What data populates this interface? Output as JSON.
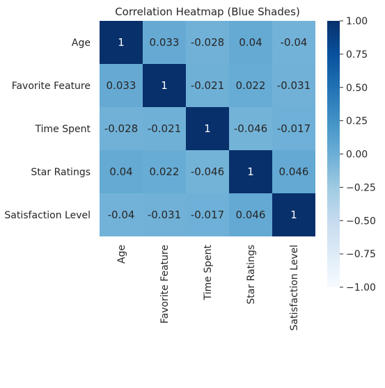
{
  "chart_data": {
    "type": "heatmap",
    "title": "Correlation Heatmap (Blue Shades)",
    "rows": [
      "Age",
      "Favorite Feature",
      "Time Spent",
      "Star Ratings",
      "Satisfaction Level"
    ],
    "columns": [
      "Age",
      "Favorite Feature",
      "Time Spent",
      "Star Ratings",
      "Satisfaction Level"
    ],
    "values": [
      [
        1,
        0.033,
        -0.028,
        0.04,
        -0.04
      ],
      [
        0.033,
        1,
        -0.021,
        0.022,
        -0.031
      ],
      [
        -0.028,
        -0.021,
        1,
        -0.046,
        -0.017
      ],
      [
        0.04,
        0.022,
        -0.046,
        1,
        0.046
      ],
      [
        -0.04,
        -0.031,
        -0.017,
        0.046,
        1
      ]
    ],
    "cell_labels": [
      [
        "1",
        "0.033",
        "-0.028",
        "0.04",
        "-0.04"
      ],
      [
        "0.033",
        "1",
        "-0.021",
        "0.022",
        "-0.031"
      ],
      [
        "-0.028",
        "-0.021",
        "1",
        "-0.046",
        "-0.017"
      ],
      [
        "0.04",
        "0.022",
        "-0.046",
        "1",
        "0.046"
      ],
      [
        "-0.04",
        "-0.031",
        "-0.017",
        "0.046",
        "1"
      ]
    ],
    "colorbar": {
      "range": [
        -1,
        1
      ],
      "ticks": [
        1.0,
        0.75,
        0.5,
        0.25,
        0.0,
        -0.25,
        -0.5,
        -0.75,
        -1.0
      ],
      "tick_labels": [
        "1.00",
        "0.75",
        "0.50",
        "0.25",
        "0.00",
        "−0.25",
        "−0.50",
        "−0.75",
        "−1.00"
      ],
      "colormap": "Blues"
    },
    "colors": {
      "low": "#f7fbff",
      "high": "#08306b",
      "cell_mid": "#6aaed6"
    },
    "grid": false,
    "legend": "colorbar-right"
  }
}
